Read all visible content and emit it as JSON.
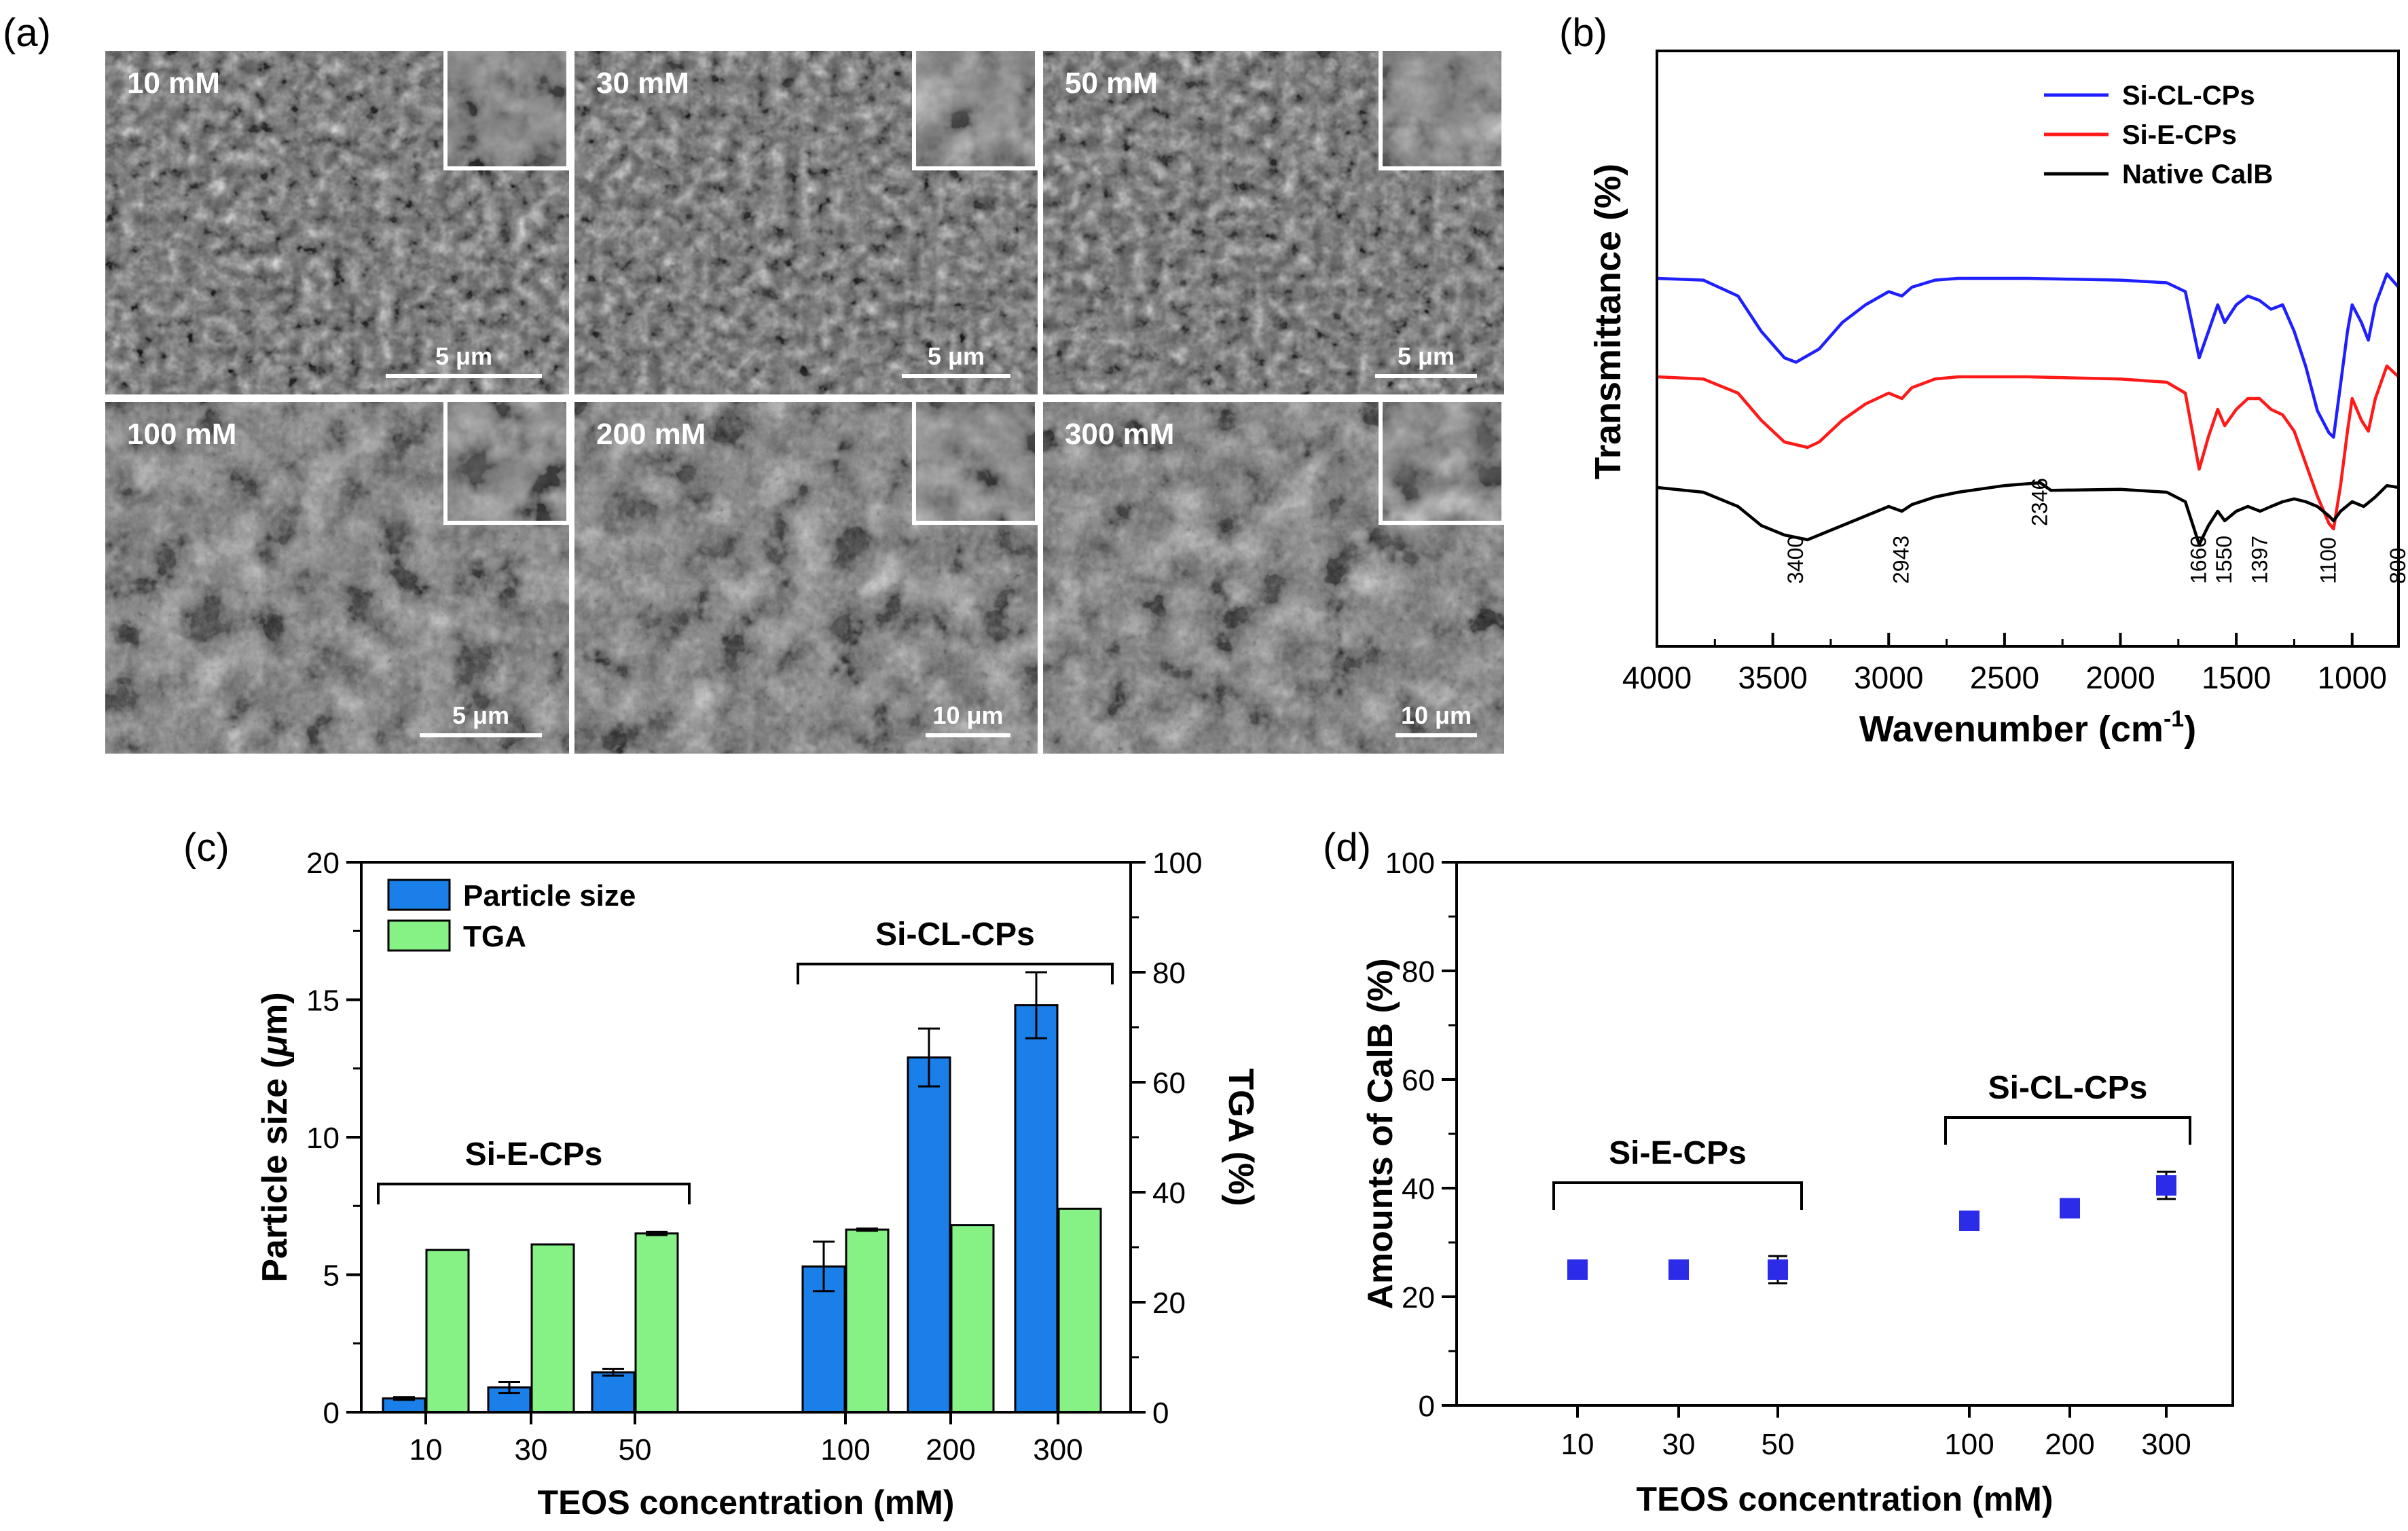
{
  "panels": {
    "a": {
      "label": "(a)",
      "images": [
        {
          "concentration": "10 mM",
          "scale_bar": "5 μm"
        },
        {
          "concentration": "30 mM",
          "scale_bar": "5 μm"
        },
        {
          "concentration": "50 mM",
          "scale_bar": "5 μm"
        },
        {
          "concentration": "100 mM",
          "scale_bar": "5 μm"
        },
        {
          "concentration": "200 mM",
          "scale_bar": "10 μm"
        },
        {
          "concentration": "300 mM",
          "scale_bar": "10 μm"
        }
      ]
    },
    "b": {
      "label": "(b)"
    },
    "c": {
      "label": "(c)"
    },
    "d": {
      "label": "(d)"
    }
  },
  "chart_data": [
    {
      "id": "b",
      "type": "line",
      "xlabel": "Wavenumber (cm-1)",
      "xlabel_main": "Wavenumber (cm",
      "xlabel_sup": "-1",
      "xlabel_end": ")",
      "ylabel": "Transmittance (%)",
      "xlim": [
        4000,
        800
      ],
      "xticks": [
        4000,
        3500,
        3000,
        2500,
        2000,
        1500,
        1000
      ],
      "xtick_labels": [
        "4000",
        "3500",
        "3000",
        "2500",
        "2000",
        "1500",
        "1000"
      ],
      "legend": "top-right",
      "annotations": [
        "3400",
        "2943",
        "2346",
        "1660",
        "1550",
        "1397",
        "1100",
        "800"
      ],
      "annotation_positions": [
        3400,
        2943,
        2346,
        1660,
        1550,
        1397,
        1100,
        800
      ],
      "series": [
        {
          "name": "Si-CL-CPs",
          "color": "#1f1fff",
          "offset": 2.0,
          "points": [
            [
              4000,
              0
            ],
            [
              3800,
              -0.02
            ],
            [
              3650,
              -0.2
            ],
            [
              3550,
              -0.6
            ],
            [
              3450,
              -0.9
            ],
            [
              3400,
              -0.95
            ],
            [
              3300,
              -0.8
            ],
            [
              3200,
              -0.5
            ],
            [
              3100,
              -0.3
            ],
            [
              3000,
              -0.15
            ],
            [
              2943,
              -0.2
            ],
            [
              2900,
              -0.1
            ],
            [
              2800,
              -0.02
            ],
            [
              2700,
              0
            ],
            [
              2400,
              0
            ],
            [
              2000,
              -0.02
            ],
            [
              1800,
              -0.05
            ],
            [
              1720,
              -0.15
            ],
            [
              1660,
              -0.9
            ],
            [
              1620,
              -0.6
            ],
            [
              1580,
              -0.3
            ],
            [
              1550,
              -0.5
            ],
            [
              1500,
              -0.3
            ],
            [
              1450,
              -0.2
            ],
            [
              1400,
              -0.25
            ],
            [
              1350,
              -0.35
            ],
            [
              1300,
              -0.3
            ],
            [
              1250,
              -0.6
            ],
            [
              1200,
              -1.0
            ],
            [
              1150,
              -1.5
            ],
            [
              1100,
              -1.75
            ],
            [
              1080,
              -1.8
            ],
            [
              1050,
              -1.2
            ],
            [
              1020,
              -0.6
            ],
            [
              1000,
              -0.3
            ],
            [
              960,
              -0.5
            ],
            [
              930,
              -0.7
            ],
            [
              900,
              -0.3
            ],
            [
              850,
              0.05
            ],
            [
              800,
              -0.1
            ]
          ]
        },
        {
          "name": "Si-E-CPs",
          "color": "#ff1a1a",
          "offset": 1.0,
          "points": [
            [
              4000,
              0
            ],
            [
              3800,
              -0.02
            ],
            [
              3650,
              -0.15
            ],
            [
              3550,
              -0.4
            ],
            [
              3450,
              -0.6
            ],
            [
              3350,
              -0.65
            ],
            [
              3300,
              -0.6
            ],
            [
              3200,
              -0.4
            ],
            [
              3100,
              -0.25
            ],
            [
              3000,
              -0.15
            ],
            [
              2943,
              -0.2
            ],
            [
              2900,
              -0.1
            ],
            [
              2800,
              -0.02
            ],
            [
              2700,
              0
            ],
            [
              2400,
              0
            ],
            [
              2000,
              -0.02
            ],
            [
              1800,
              -0.05
            ],
            [
              1720,
              -0.15
            ],
            [
              1660,
              -0.85
            ],
            [
              1620,
              -0.55
            ],
            [
              1580,
              -0.3
            ],
            [
              1550,
              -0.45
            ],
            [
              1500,
              -0.3
            ],
            [
              1450,
              -0.2
            ],
            [
              1400,
              -0.2
            ],
            [
              1350,
              -0.3
            ],
            [
              1300,
              -0.35
            ],
            [
              1250,
              -0.5
            ],
            [
              1200,
              -0.8
            ],
            [
              1150,
              -1.1
            ],
            [
              1100,
              -1.35
            ],
            [
              1080,
              -1.4
            ],
            [
              1050,
              -1.0
            ],
            [
              1020,
              -0.5
            ],
            [
              1000,
              -0.2
            ],
            [
              960,
              -0.4
            ],
            [
              930,
              -0.5
            ],
            [
              900,
              -0.2
            ],
            [
              850,
              0.1
            ],
            [
              800,
              0.0
            ]
          ]
        },
        {
          "name": "Native CalB",
          "color": "#000000",
          "offset": 0.0,
          "points": [
            [
              4000,
              0
            ],
            [
              3800,
              -0.05
            ],
            [
              3650,
              -0.2
            ],
            [
              3550,
              -0.4
            ],
            [
              3450,
              -0.5
            ],
            [
              3350,
              -0.55
            ],
            [
              3300,
              -0.5
            ],
            [
              3200,
              -0.4
            ],
            [
              3100,
              -0.3
            ],
            [
              3000,
              -0.2
            ],
            [
              2943,
              -0.25
            ],
            [
              2900,
              -0.18
            ],
            [
              2800,
              -0.1
            ],
            [
              2700,
              -0.05
            ],
            [
              2500,
              0.02
            ],
            [
              2346,
              0.05
            ],
            [
              2300,
              -0.03
            ],
            [
              2000,
              -0.02
            ],
            [
              1800,
              -0.05
            ],
            [
              1720,
              -0.15
            ],
            [
              1660,
              -0.6
            ],
            [
              1620,
              -0.4
            ],
            [
              1580,
              -0.25
            ],
            [
              1550,
              -0.35
            ],
            [
              1500,
              -0.25
            ],
            [
              1450,
              -0.2
            ],
            [
              1397,
              -0.25
            ],
            [
              1350,
              -0.2
            ],
            [
              1300,
              -0.15
            ],
            [
              1250,
              -0.12
            ],
            [
              1200,
              -0.15
            ],
            [
              1150,
              -0.2
            ],
            [
              1100,
              -0.3
            ],
            [
              1080,
              -0.35
            ],
            [
              1050,
              -0.25
            ],
            [
              1000,
              -0.15
            ],
            [
              950,
              -0.2
            ],
            [
              900,
              -0.1
            ],
            [
              850,
              0.02
            ],
            [
              800,
              0.0
            ]
          ]
        }
      ]
    },
    {
      "id": "c",
      "type": "bar",
      "xlabel": "TEOS concentration (mM)",
      "ylabel_left": "Particle size (μm)",
      "ylabel_left_main": "Particle size (",
      "ylabel_left_mu": "μ",
      "ylabel_left_end": "m)",
      "ylabel_right": "TGA (%)",
      "ylim_left": [
        0,
        20
      ],
      "ylim_right": [
        0,
        100
      ],
      "yticks_left": [
        0,
        5,
        10,
        15,
        20
      ],
      "ytick_labels_left": [
        "0",
        "5",
        "10",
        "15",
        "20"
      ],
      "yticks_right": [
        0,
        20,
        40,
        60,
        80,
        100
      ],
      "ytick_labels_right": [
        "0",
        "20",
        "40",
        "60",
        "80",
        "100"
      ],
      "categories": [
        "10",
        "30",
        "50",
        "100",
        "200",
        "300"
      ],
      "legend": "top-left",
      "groups": [
        {
          "label": "Si-E-CPs",
          "from": 0,
          "to": 2,
          "level": 8.3
        },
        {
          "label": "Si-CL-CPs",
          "from": 3,
          "to": 5,
          "level": 16.3
        }
      ],
      "series": [
        {
          "name": "Particle size",
          "color": "#1a7fe8",
          "axis": "left",
          "values": [
            0.5,
            0.9,
            1.45,
            5.3,
            12.9,
            14.8
          ],
          "errors": [
            0.05,
            0.2,
            0.12,
            0.9,
            1.05,
            1.2
          ]
        },
        {
          "name": "TGA",
          "color": "#86f286",
          "axis": "right",
          "values": [
            29.5,
            30.5,
            32.5,
            33.2,
            34,
            37
          ],
          "errors": [
            0,
            0,
            0.3,
            0.2,
            0,
            0
          ]
        }
      ]
    },
    {
      "id": "d",
      "type": "scatter",
      "xlabel": "TEOS concentration (mM)",
      "ylabel": "Amounts of CalB (%)",
      "ylim": [
        0,
        100
      ],
      "yticks": [
        0,
        20,
        40,
        60,
        80,
        100
      ],
      "ytick_labels": [
        "0",
        "20",
        "40",
        "60",
        "80",
        "100"
      ],
      "categories": [
        "10",
        "30",
        "50",
        "100",
        "200",
        "300"
      ],
      "groups": [
        {
          "label": "Si-E-CPs",
          "from": 0,
          "to": 2,
          "level": 41
        },
        {
          "label": "Si-CL-CPs",
          "from": 3,
          "to": 5,
          "level": 53
        }
      ],
      "series": [
        {
          "name": "Amounts of CalB",
          "color": "#2b2be8",
          "values": [
            25,
            25,
            25,
            34,
            36.3,
            40.5
          ],
          "errors": [
            1,
            1,
            2.5,
            1.5,
            1.5,
            2.5
          ]
        }
      ]
    }
  ]
}
